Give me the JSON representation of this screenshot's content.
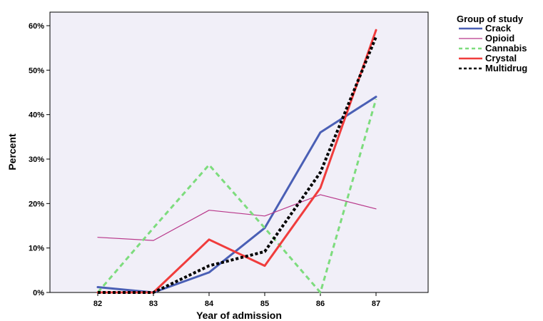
{
  "chart_data": {
    "type": "line",
    "xlabel": "Year of admission",
    "ylabel": "Percent",
    "categories": [
      "82",
      "83",
      "84",
      "85",
      "86",
      "87"
    ],
    "y_ticks": [
      "0%",
      "10%",
      "20%",
      "30%",
      "40%",
      "50%",
      "60%"
    ],
    "ylim": [
      0,
      63
    ],
    "grid": false,
    "legend": {
      "title": "Group of study",
      "position": "top-right outside"
    },
    "series": [
      {
        "name": "Crack",
        "color": "#4a5fb5",
        "dash": "solid",
        "values": [
          1.2,
          0,
          4.5,
          14.5,
          36,
          44
        ]
      },
      {
        "name": "Opioid",
        "color": "#b8378a",
        "dash": "solid",
        "values": [
          12.4,
          11.7,
          18.5,
          17.2,
          22,
          18.8
        ]
      },
      {
        "name": "Cannabis",
        "color": "#7ddc7d",
        "dash": "dashed",
        "values": [
          0,
          14.5,
          28.7,
          14.5,
          0,
          43.5
        ]
      },
      {
        "name": "Crystal",
        "color": "#f03c3c",
        "dash": "solid",
        "values": [
          0,
          0,
          11.9,
          6,
          23.5,
          59
        ]
      },
      {
        "name": "Multidrug",
        "color": "#000000",
        "dash": "dotted",
        "values": [
          0,
          0,
          6,
          9.2,
          27,
          57.5
        ]
      }
    ]
  }
}
